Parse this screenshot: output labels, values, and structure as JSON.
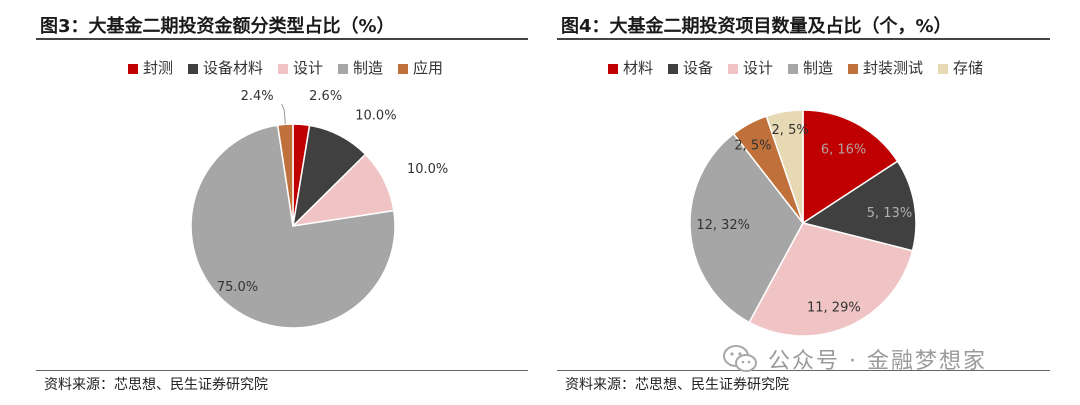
{
  "left": {
    "title": "图3：大基金二期投资金额分类型占比（%）",
    "source": "资料来源：芯思想、民生证券研究院",
    "chart_data": {
      "type": "pie",
      "title": "图3：大基金二期投资金额分类型占比（%）",
      "legend_position": "top",
      "slices": [
        {
          "name": "封测",
          "value": 2.6,
          "label": "2.6%",
          "color": "#c00000"
        },
        {
          "name": "设备材料",
          "value": 10.0,
          "label": "10.0%",
          "color": "#404040"
        },
        {
          "name": "设计",
          "value": 10.0,
          "label": "10.0%",
          "color": "#f0c4c4"
        },
        {
          "name": "制造",
          "value": 75.0,
          "label": "75.0%",
          "color": "#a6a6a6"
        },
        {
          "name": "应用",
          "value": 2.4,
          "label": "2.4%",
          "color": "#c0713b"
        }
      ]
    }
  },
  "right": {
    "title": "图4：大基金二期投资项目数量及占比（个，%）",
    "source": "资料来源：芯思想、民生证券研究院",
    "chart_data": {
      "type": "pie",
      "title": "图4：大基金二期投资项目数量及占比（个，%）",
      "legend_position": "top",
      "slices": [
        {
          "name": "材料",
          "value": 6,
          "percent": 16,
          "label": "6, 16%",
          "color": "#c00000"
        },
        {
          "name": "设备",
          "value": 5,
          "percent": 13,
          "label": "5, 13%",
          "color": "#404040"
        },
        {
          "name": "设计",
          "value": 11,
          "percent": 29,
          "label": "11, 29%",
          "color": "#f0c4c4"
        },
        {
          "name": "制造",
          "value": 12,
          "percent": 32,
          "label": "12, 32%",
          "color": "#a6a6a6"
        },
        {
          "name": "封装测试",
          "value": 2,
          "percent": 5,
          "label": "2, 5%",
          "color": "#c0713b"
        },
        {
          "name": "存储",
          "value": 2,
          "percent": 5,
          "label": "2, 5%",
          "color": "#e8d9b5"
        }
      ]
    }
  },
  "watermark": {
    "text": "公众号 · 金融梦想家",
    "icon": "wechat-icon",
    "color": "#9a9a9a"
  }
}
